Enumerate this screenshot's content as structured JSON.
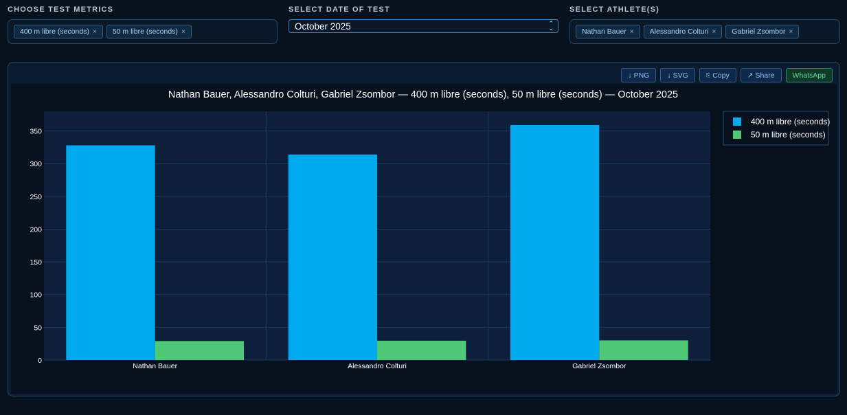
{
  "filters": {
    "metrics": {
      "label": "CHOOSE TEST METRICS",
      "chips": [
        "400 m libre (seconds)",
        "50 m libre (seconds)"
      ]
    },
    "date": {
      "label": "SELECT DATE OF TEST",
      "value": "October 2025"
    },
    "athletes": {
      "label": "SELECT ATHLETE(S)",
      "chips": [
        "Nathan Bauer",
        "Alessandro Colturi",
        "Gabriel Zsombor"
      ]
    }
  },
  "toolbar": {
    "png": "PNG",
    "svg": "SVG",
    "copy": "Copy",
    "share": "Share",
    "whatsapp": "WhatsApp"
  },
  "chip_remove_glyph": "×",
  "chart_data": {
    "type": "bar",
    "title": "Nathan Bauer, Alessandro Colturi, Gabriel Zsombor — 400 m libre (seconds), 50 m libre (seconds) — October 2025",
    "categories": [
      "Nathan Bauer",
      "Alessandro Colturi",
      "Gabriel Zsombor"
    ],
    "series": [
      {
        "name": "400 m libre (seconds)",
        "values": [
          328,
          314,
          359
        ],
        "color": "#00aaee"
      },
      {
        "name": "50 m libre (seconds)",
        "values": [
          29,
          29.5,
          30
        ],
        "color": "#4fc878"
      }
    ],
    "ylim": [
      0,
      380
    ],
    "yticks": [
      0,
      50,
      100,
      150,
      200,
      250,
      300,
      350
    ],
    "xlabel": "",
    "ylabel": "",
    "grid": true,
    "legend_position": "top-right"
  }
}
